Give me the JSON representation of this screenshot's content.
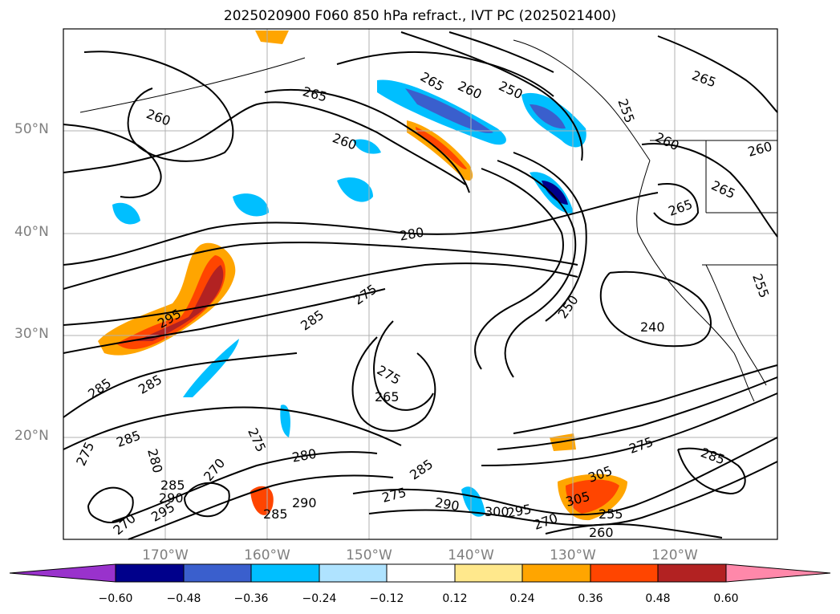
{
  "title": "2025020900 F060 850 hPa refract., IVT PC (2025021400)",
  "lat_labels": [
    "50°N",
    "40°N",
    "30°N",
    "20°N"
  ],
  "lon_labels": [
    "170°W",
    "160°W",
    "150°W",
    "140°W",
    "130°W",
    "120°W"
  ],
  "colorbar": {
    "tick_labels": [
      "−0.60",
      "−0.48",
      "−0.36",
      "−0.24",
      "−0.12",
      "0.12",
      "0.24",
      "0.36",
      "0.48",
      "0.60"
    ],
    "colors": [
      "#9932cc",
      "#00008b",
      "#3a5fcd",
      "#00bfff",
      "#afe3ff",
      "#ffffff",
      "#ffe88c",
      "#ffa500",
      "#ff4500",
      "#b22222",
      "#ff88aa"
    ]
  },
  "contour_labels": [
    "265",
    "260",
    "250",
    "255",
    "265",
    "260",
    "260",
    "260",
    "265",
    "265",
    "280",
    "275",
    "285",
    "250",
    "240",
    "255",
    "265",
    "260",
    "265",
    "275",
    "295",
    "285",
    "285",
    "275",
    "285",
    "280",
    "275",
    "270",
    "285",
    "290",
    "295",
    "270",
    "285",
    "290",
    "280",
    "275",
    "285",
    "290",
    "300",
    "295",
    "270",
    "305",
    "305",
    "255",
    "260",
    "275",
    "285"
  ]
}
